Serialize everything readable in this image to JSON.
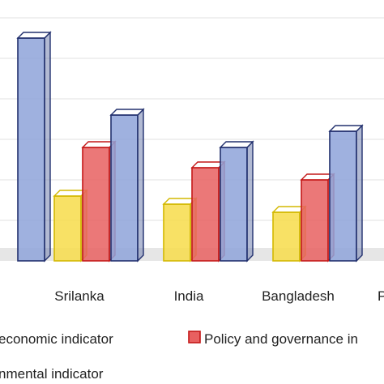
{
  "chart_data": {
    "type": "bar",
    "categories": [
      "",
      "Srilanka",
      "India",
      "Bangladesh",
      "P"
    ],
    "series": [
      {
        "name": "economic indicator",
        "color": "#F7DC4A",
        "values": [
          null,
          1.6,
          1.4,
          1.2,
          null
        ]
      },
      {
        "name": "Policy and governance in",
        "color": "#E86060",
        "values": [
          null,
          2.8,
          2.3,
          2.0,
          null
        ]
      },
      {
        "name": "nmental indicator",
        "color": "#8EA3D9",
        "values": [
          5.5,
          3.6,
          2.8,
          3.2,
          null
        ]
      }
    ],
    "grid": true,
    "legend": "bottom",
    "xlabel": "",
    "ylabel": ""
  }
}
